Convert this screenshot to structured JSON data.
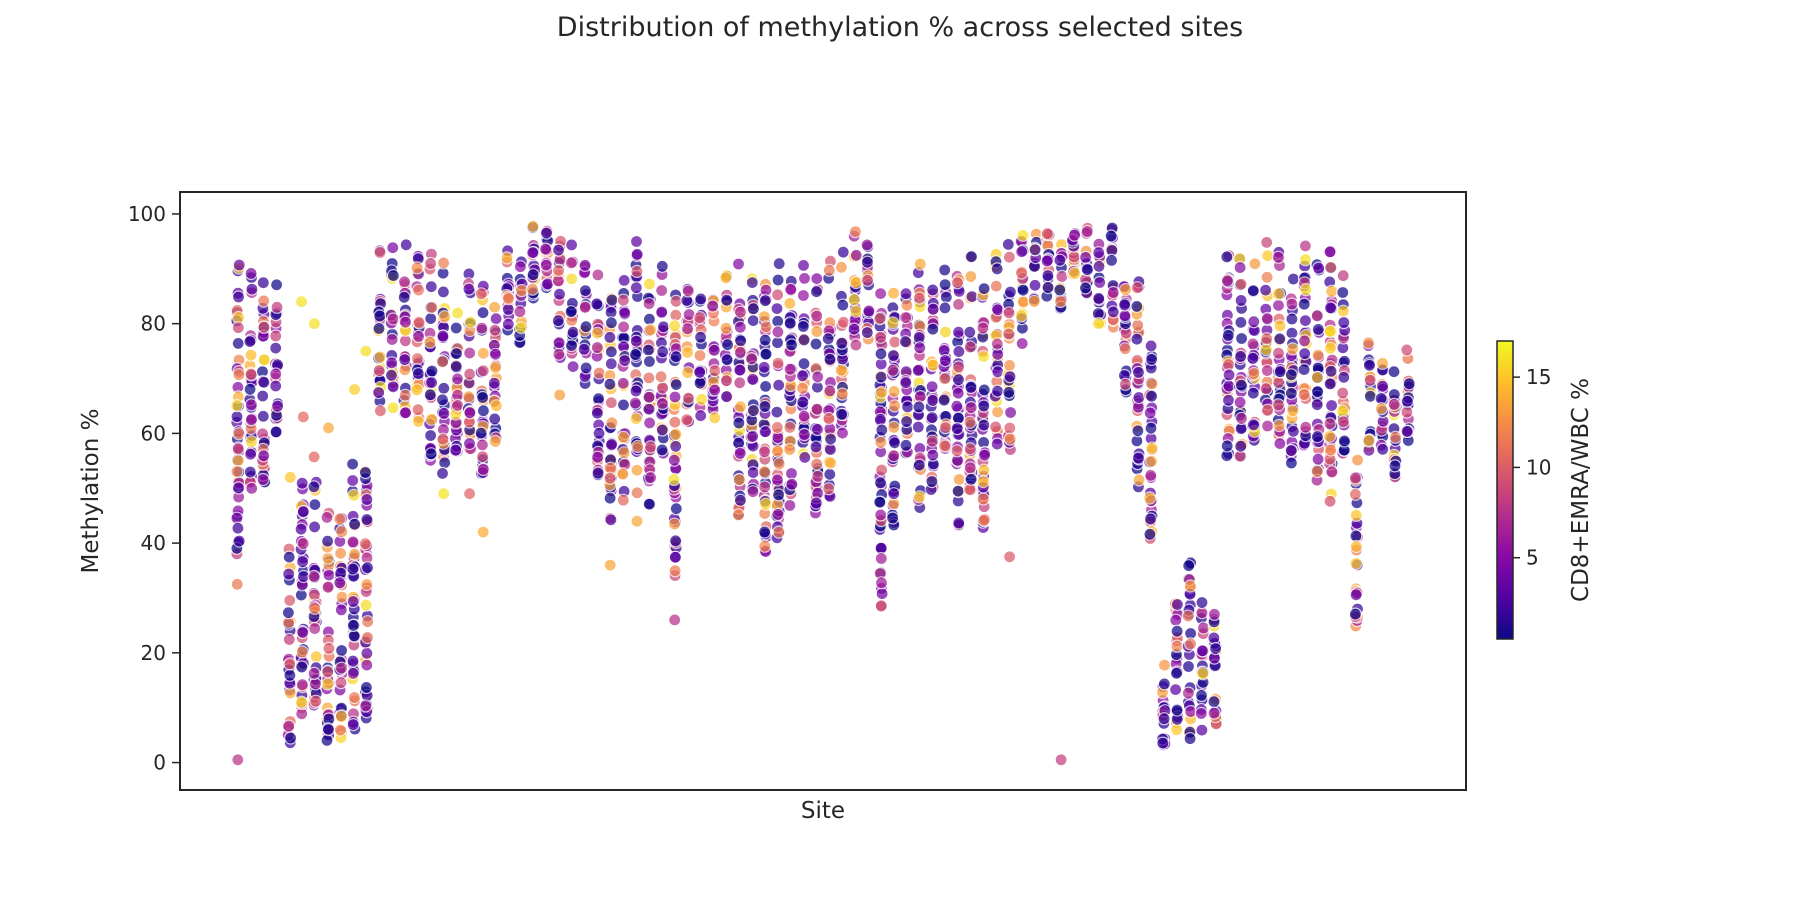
{
  "chart_data": {
    "type": "scatter",
    "title": "Distribution of methylation % across selected sites",
    "xlabel": "Site",
    "ylabel": "Methylation %",
    "ylim": [
      -5,
      104
    ],
    "yticks": [
      0,
      20,
      40,
      60,
      80,
      100
    ],
    "xlim": [
      -0.5,
      56.5
    ],
    "x_ticks_shown": false,
    "grid": false,
    "colorbar": {
      "label": "CD8+EMRA/WBC %",
      "range": [
        0.5,
        17
      ],
      "ticks": [
        5,
        10,
        15
      ],
      "colormap": "plasma",
      "stops": [
        "#0d0887",
        "#5302a3",
        "#8b0aa5",
        "#b83289",
        "#db5c68",
        "#f48849",
        "#febc2a",
        "#f0f921"
      ]
    },
    "point_style": {
      "radius": 6,
      "opacity": 0.72,
      "edge": "#ffffff"
    },
    "sites": [
      {
        "site": 1,
        "ymin": 37,
        "ymax": 91,
        "outliers": [
          0.5,
          32.5
        ]
      },
      {
        "site": 2,
        "ymin": 49,
        "ymax": 92,
        "outliers": []
      },
      {
        "site": 3,
        "ymin": 50,
        "ymax": 88,
        "outliers": []
      },
      {
        "site": 4,
        "ymin": 60,
        "ymax": 88,
        "outliers": []
      },
      {
        "site": 5,
        "ymin": 3,
        "ymax": 42,
        "outliers": [
          52
        ]
      },
      {
        "site": 6,
        "ymin": 8,
        "ymax": 54,
        "outliers": [
          63,
          84
        ]
      },
      {
        "site": 7,
        "ymin": 10,
        "ymax": 56,
        "outliers": [
          80
        ]
      },
      {
        "site": 8,
        "ymin": 4,
        "ymax": 46,
        "outliers": [
          61
        ]
      },
      {
        "site": 9,
        "ymin": 2.5,
        "ymax": 48,
        "outliers": []
      },
      {
        "site": 10,
        "ymin": 5,
        "ymax": 55,
        "outliers": [
          68
        ]
      },
      {
        "site": 11,
        "ymin": 8,
        "ymax": 58,
        "outliers": [
          75
        ]
      },
      {
        "site": 12,
        "ymin": 63,
        "ymax": 94,
        "outliers": []
      },
      {
        "site": 13,
        "ymin": 64,
        "ymax": 95,
        "outliers": []
      },
      {
        "site": 14,
        "ymin": 62,
        "ymax": 95,
        "outliers": []
      },
      {
        "site": 15,
        "ymin": 61,
        "ymax": 94,
        "outliers": []
      },
      {
        "site": 16,
        "ymin": 55,
        "ymax": 94,
        "outliers": []
      },
      {
        "site": 17,
        "ymin": 52,
        "ymax": 93,
        "outliers": [
          49
        ]
      },
      {
        "site": 18,
        "ymin": 55,
        "ymax": 91,
        "outliers": []
      },
      {
        "site": 19,
        "ymin": 56,
        "ymax": 91,
        "outliers": [
          49
        ]
      },
      {
        "site": 20,
        "ymin": 52,
        "ymax": 88,
        "outliers": [
          42
        ]
      },
      {
        "site": 21,
        "ymin": 57,
        "ymax": 85,
        "outliers": []
      },
      {
        "site": 22,
        "ymin": 78,
        "ymax": 97,
        "outliers": []
      },
      {
        "site": 23,
        "ymin": 76,
        "ymax": 97,
        "outliers": []
      },
      {
        "site": 24,
        "ymin": 84,
        "ymax": 98,
        "outliers": []
      },
      {
        "site": 25,
        "ymin": 86,
        "ymax": 99,
        "outliers": []
      },
      {
        "site": 26,
        "ymin": 73,
        "ymax": 97,
        "outliers": [
          67
        ]
      },
      {
        "site": 27,
        "ymin": 72,
        "ymax": 95,
        "outliers": []
      },
      {
        "site": 28,
        "ymin": 68,
        "ymax": 92,
        "outliers": []
      },
      {
        "site": 29,
        "ymin": 50,
        "ymax": 89,
        "outliers": []
      },
      {
        "site": 30,
        "ymin": 44,
        "ymax": 89,
        "outliers": [
          36
        ]
      },
      {
        "site": 31,
        "ymin": 47,
        "ymax": 88,
        "outliers": []
      },
      {
        "site": 32,
        "ymin": 49,
        "ymax": 96,
        "outliers": [
          44
        ]
      },
      {
        "site": 33,
        "ymin": 47,
        "ymax": 89,
        "outliers": []
      },
      {
        "site": 34,
        "ymin": 56,
        "ymax": 93,
        "outliers": []
      },
      {
        "site": 35,
        "ymin": 34,
        "ymax": 88,
        "outliers": [
          26
        ]
      },
      {
        "site": 36,
        "ymin": 62,
        "ymax": 87,
        "outliers": []
      },
      {
        "site": 37,
        "ymin": 63,
        "ymax": 87,
        "outliers": []
      },
      {
        "site": 38,
        "ymin": 59,
        "ymax": 87,
        "outliers": []
      },
      {
        "site": 39,
        "ymin": 65,
        "ymax": 91,
        "outliers": []
      },
      {
        "site": 40,
        "ymin": 43,
        "ymax": 92,
        "outliers": []
      },
      {
        "site": 41,
        "ymin": 49,
        "ymax": 91,
        "outliers": []
      },
      {
        "site": 42,
        "ymin": 36,
        "ymax": 90,
        "outliers": []
      },
      {
        "site": 43,
        "ymin": 40,
        "ymax": 91,
        "outliers": []
      },
      {
        "site": 44,
        "ymin": 45,
        "ymax": 90,
        "outliers": []
      },
      {
        "site": 45,
        "ymin": 52,
        "ymax": 91,
        "outliers": []
      },
      {
        "site": 46,
        "ymin": 44,
        "ymax": 93,
        "outliers": []
      },
      {
        "site": 47,
        "ymin": 48,
        "ymax": 92,
        "outliers": []
      },
      {
        "site": 48,
        "ymin": 60,
        "ymax": 94,
        "outliers": []
      },
      {
        "site": 49,
        "ymin": 75,
        "ymax": 98,
        "outliers": []
      },
      {
        "site": 50,
        "ymin": 76,
        "ymax": 98,
        "outliers": []
      },
      {
        "site": 51,
        "ymin": 27,
        "ymax": 89,
        "outliers": []
      },
      {
        "site": 52,
        "ymin": 43,
        "ymax": 89,
        "outliers": []
      },
      {
        "site": 53,
        "ymin": 56,
        "ymax": 88,
        "outliers": []
      },
      {
        "site": 54,
        "ymin": 45,
        "ymax": 91,
        "outliers": []
      },
      {
        "site": 55,
        "ymin": 49,
        "ymax": 89,
        "outliers": []
      },
      {
        "site": 56,
        "ymin": 57,
        "ymax": 90,
        "outliers": []
      },
      {
        "site": 57,
        "ymin": 43,
        "ymax": 91,
        "outliers": []
      },
      {
        "site": 58,
        "ymin": 49,
        "ymax": 93,
        "outliers": []
      },
      {
        "site": 59,
        "ymin": 42,
        "ymax": 90,
        "outliers": []
      },
      {
        "site": 60,
        "ymin": 58,
        "ymax": 94,
        "outliers": []
      },
      {
        "site": 61,
        "ymin": 57,
        "ymax": 95,
        "outliers": [
          37.5
        ]
      },
      {
        "site": 62,
        "ymin": 76,
        "ymax": 97,
        "outliers": []
      },
      {
        "site": 63,
        "ymin": 84,
        "ymax": 97,
        "outliers": []
      },
      {
        "site": 64,
        "ymin": 85,
        "ymax": 97,
        "outliers": []
      },
      {
        "site": 65,
        "ymin": 82,
        "ymax": 97,
        "outliers": [
          0.5
        ]
      },
      {
        "site": 66,
        "ymin": 89,
        "ymax": 98,
        "outliers": []
      },
      {
        "site": 67,
        "ymin": 85,
        "ymax": 98,
        "outliers": []
      },
      {
        "site": 68,
        "ymin": 80,
        "ymax": 97,
        "outliers": []
      },
      {
        "site": 69,
        "ymin": 78,
        "ymax": 98,
        "outliers": []
      },
      {
        "site": 70,
        "ymin": 67,
        "ymax": 93,
        "outliers": []
      },
      {
        "site": 71,
        "ymin": 49,
        "ymax": 88,
        "outliers": []
      },
      {
        "site": 72,
        "ymin": 38,
        "ymax": 77,
        "outliers": []
      },
      {
        "site": 73,
        "ymin": 3,
        "ymax": 20,
        "outliers": []
      },
      {
        "site": 74,
        "ymin": 5,
        "ymax": 31,
        "outliers": []
      },
      {
        "site": 75,
        "ymin": 4,
        "ymax": 37,
        "outliers": []
      },
      {
        "site": 76,
        "ymin": 5,
        "ymax": 30,
        "outliers": []
      },
      {
        "site": 77,
        "ymin": 6,
        "ymax": 31,
        "outliers": []
      },
      {
        "site": 78,
        "ymin": 54,
        "ymax": 96,
        "outliers": []
      },
      {
        "site": 79,
        "ymin": 55,
        "ymax": 92,
        "outliers": []
      },
      {
        "site": 80,
        "ymin": 57,
        "ymax": 91,
        "outliers": []
      },
      {
        "site": 81,
        "ymin": 59,
        "ymax": 95,
        "outliers": []
      },
      {
        "site": 82,
        "ymin": 58,
        "ymax": 96,
        "outliers": []
      },
      {
        "site": 83,
        "ymin": 54,
        "ymax": 91,
        "outliers": []
      },
      {
        "site": 84,
        "ymin": 57,
        "ymax": 96,
        "outliers": []
      },
      {
        "site": 85,
        "ymin": 50,
        "ymax": 92,
        "outliers": []
      },
      {
        "site": 86,
        "ymin": 46,
        "ymax": 96,
        "outliers": []
      },
      {
        "site": 87,
        "ymin": 56,
        "ymax": 89,
        "outliers": []
      },
      {
        "site": 88,
        "ymin": 24,
        "ymax": 56,
        "outliers": []
      },
      {
        "site": 89,
        "ymin": 56,
        "ymax": 77,
        "outliers": []
      },
      {
        "site": 90,
        "ymin": 57,
        "ymax": 76,
        "outliers": []
      },
      {
        "site": 91,
        "ymin": 52,
        "ymax": 75,
        "outliers": []
      },
      {
        "site": 92,
        "ymin": 57,
        "ymax": 77,
        "outliers": []
      }
    ]
  }
}
